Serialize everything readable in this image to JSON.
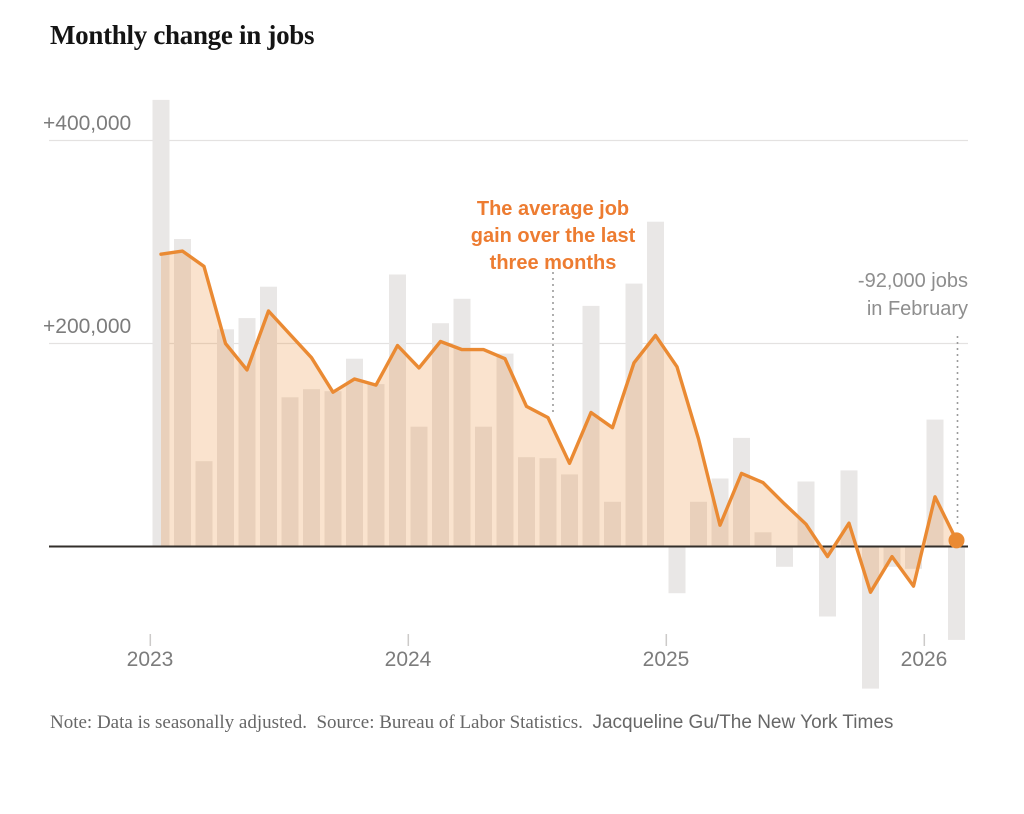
{
  "header": {
    "title": "Monthly change in jobs"
  },
  "axes": {
    "y_ticks": [
      {
        "label": "+400,000",
        "value": 400000
      },
      {
        "label": "+200,000",
        "value": 200000
      }
    ],
    "x_ticks": [
      {
        "label": "2023"
      },
      {
        "label": "2024"
      },
      {
        "label": "2025"
      },
      {
        "label": "2026"
      }
    ]
  },
  "annotations": {
    "avg_label": "The average job\ngain over the last\nthree months",
    "feb_label": "-92,000 jobs\nin February"
  },
  "note": {
    "text": "Note: Data is seasonally adjusted.  Source: Bureau of Labor Statistics.  ",
    "credit": "Jacqueline Gu/The New York Times"
  },
  "colors": {
    "line": "#ea8a33",
    "fill_opacity": "0.24",
    "bar": "#e9e7e6",
    "grid": "#e4e2e1",
    "tick": "#cccac9",
    "baseline": "#332f2b",
    "connector": "#9b9b9b",
    "annotation_orange": "#ed7c31",
    "annotation_gray": "#8e8e8e"
  },
  "chart_data": {
    "type": "bar",
    "title": "Monthly change in jobs",
    "xlabel": "",
    "ylabel": "Monthly change in jobs",
    "ylim": [
      -150000,
      450000
    ],
    "grid": true,
    "legend_position": "none",
    "months": [
      "Jan 2023",
      "Feb 2023",
      "Mar 2023",
      "Apr 2023",
      "May 2023",
      "Jun 2023",
      "Jul 2023",
      "Aug 2023",
      "Sep 2023",
      "Oct 2023",
      "Nov 2023",
      "Dec 2023",
      "Jan 2024",
      "Feb 2024",
      "Mar 2024",
      "Apr 2024",
      "May 2024",
      "Jun 2024",
      "Jul 2024",
      "Aug 2024",
      "Sep 2024",
      "Oct 2024",
      "Nov 2024",
      "Dec 2024",
      "Jan 2025",
      "Feb 2025",
      "Mar 2025",
      "Apr 2025",
      "May 2025",
      "Jun 2025",
      "Jul 2025",
      "Aug 2025",
      "Sep 2025",
      "Oct 2025",
      "Nov 2025",
      "Dec 2025",
      "Jan 2026",
      "Feb 2026"
    ],
    "series": [
      {
        "name": "Monthly change in jobs",
        "type": "bar",
        "values": [
          440000,
          303000,
          84000,
          214000,
          225000,
          256000,
          147000,
          155000,
          153000,
          185000,
          160000,
          268000,
          118000,
          220000,
          244000,
          118000,
          190000,
          88000,
          87000,
          71000,
          237000,
          44000,
          259000,
          320000,
          -46000,
          44000,
          67000,
          107000,
          14000,
          -20000,
          64000,
          -69000,
          75000,
          -140000,
          -20000,
          -22000,
          125000,
          -92000
        ]
      },
      {
        "name": "The average job gain over the last three months",
        "type": "line",
        "values": [
          288000,
          291000,
          276000,
          200000,
          174000,
          232000,
          209000,
          186000,
          152000,
          165000,
          159000,
          198000,
          176000,
          202000,
          194000,
          194000,
          185000,
          138000,
          127000,
          82000,
          132000,
          117000,
          181000,
          208000,
          177000,
          106000,
          21000,
          72000,
          63000,
          42000,
          22000,
          -10000,
          23000,
          -45000,
          -10000,
          -39000,
          49000,
          6000
        ]
      }
    ],
    "highlight_point": {
      "month": "Feb 2026",
      "bar_value": -92000,
      "label": "-92,000 jobs in February"
    }
  }
}
